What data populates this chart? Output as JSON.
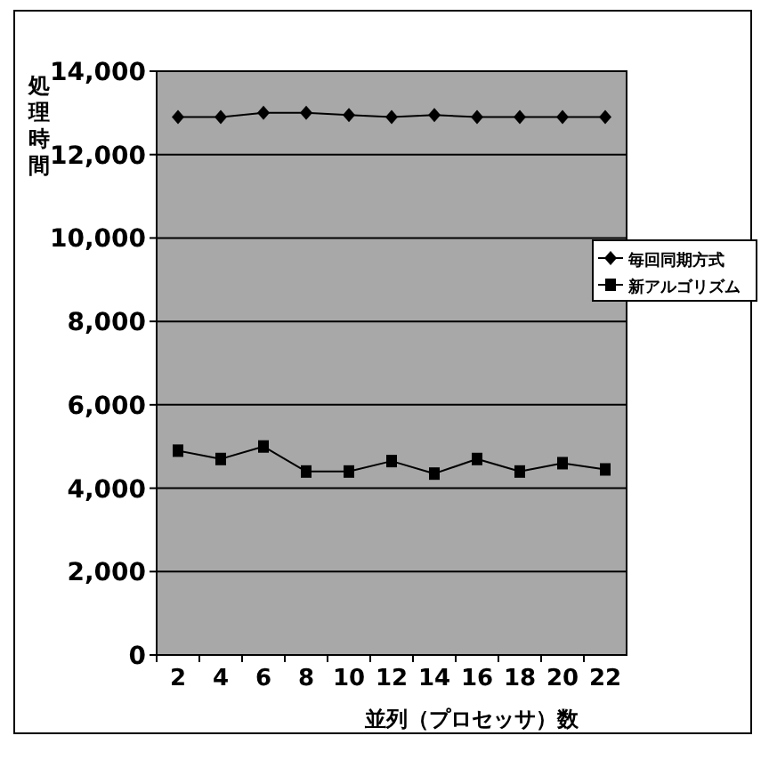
{
  "chart_data": {
    "type": "line",
    "xlabel": "並列（プロセッサ）数",
    "ylabel": "処理時間",
    "categories": [
      "2",
      "4",
      "6",
      "8",
      "10",
      "12",
      "14",
      "16",
      "18",
      "20",
      "22"
    ],
    "series": [
      {
        "name": "毎回同期方式",
        "color": "#000000",
        "marker": "diamond",
        "values": [
          12900,
          12900,
          13000,
          13000,
          12950,
          12900,
          12950,
          12900,
          12900,
          12900,
          12900
        ]
      },
      {
        "name": "新アルゴリズム",
        "color": "#000000",
        "marker": "square",
        "values": [
          4900,
          4700,
          5000,
          4400,
          4400,
          4650,
          4350,
          4700,
          4400,
          4600,
          4450
        ]
      }
    ],
    "ylim": [
      0,
      14000
    ],
    "yticks": [
      {
        "value": 0,
        "label": "0"
      },
      {
        "value": 2000,
        "label": "2,000"
      },
      {
        "value": 4000,
        "label": "4,000"
      },
      {
        "value": 6000,
        "label": "6,000"
      },
      {
        "value": 8000,
        "label": "8,000"
      },
      {
        "value": 10000,
        "label": "10,000"
      },
      {
        "value": 12000,
        "label": "12,000"
      },
      {
        "value": 14000,
        "label": "14,000"
      }
    ],
    "grid": "y",
    "legend": "right"
  }
}
